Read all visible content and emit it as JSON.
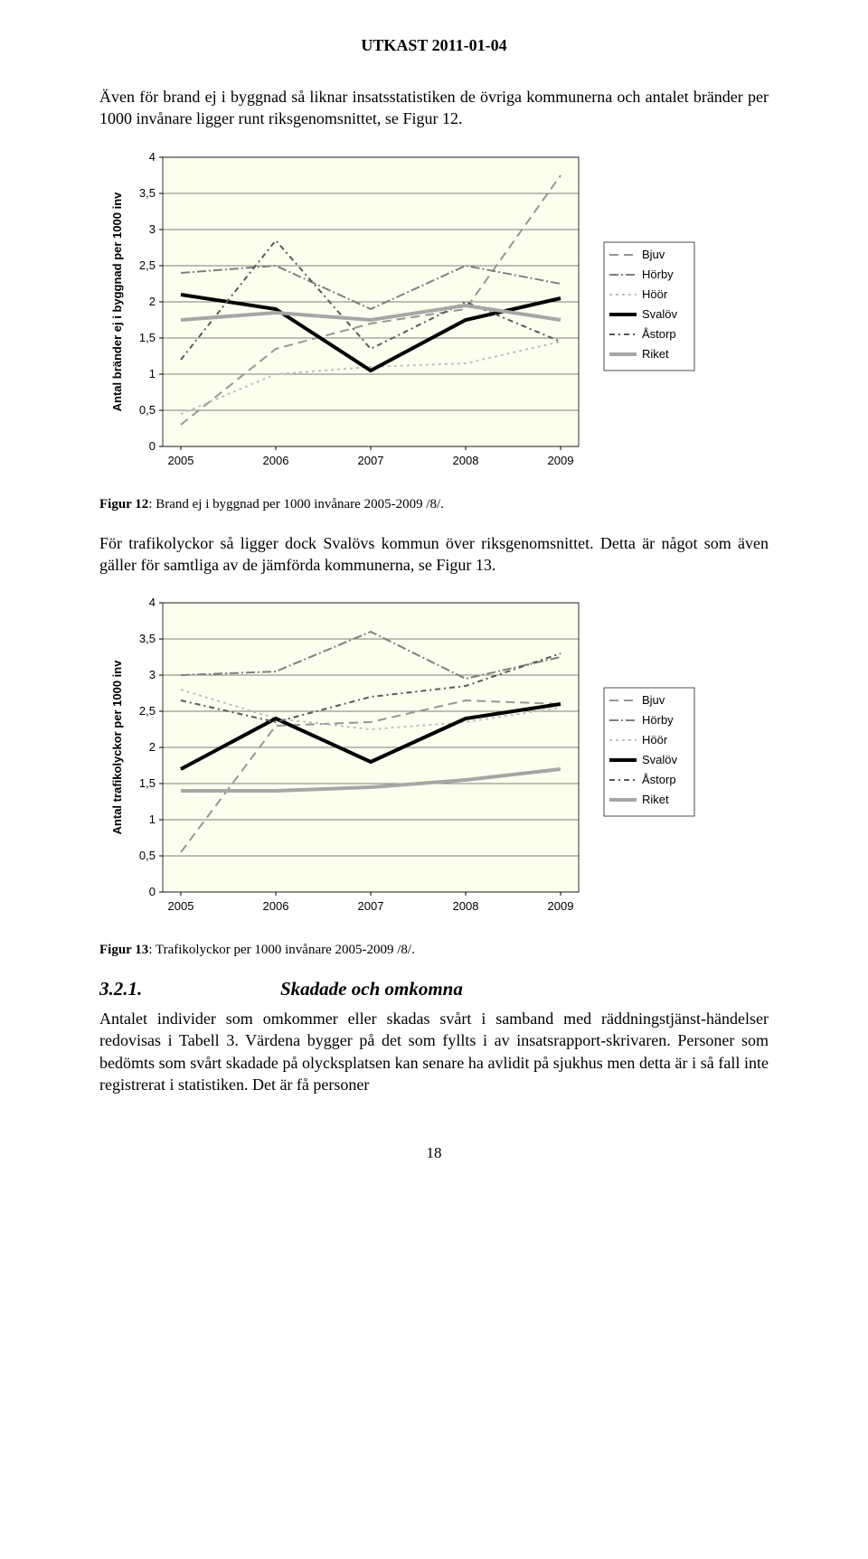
{
  "header": "UTKAST 2011-01-04",
  "para1_a": "Även för brand ej i byggnad så liknar insatsstatistiken de övriga kommunerna och antalet bränder per 1000 invånare ligger runt riksgenomsnittet, se ",
  "para1_ref": "Figur 12",
  "para1_b": ".",
  "chart1": {
    "ylabel": "Antal bränder ej i byggnad per 1000 inv",
    "ylim": [
      0,
      4
    ],
    "ytick_step": 0.5,
    "ytick_labels": [
      "0",
      "0,5",
      "1",
      "1,5",
      "2",
      "2,5",
      "3",
      "3,5",
      "4"
    ],
    "x_categories": [
      "2005",
      "2006",
      "2007",
      "2008",
      "2009"
    ],
    "legend": [
      "Bjuv",
      "Hörby",
      "Höör",
      "Svalöv",
      "Åstorp",
      "Riket"
    ],
    "series": {
      "Bjuv": {
        "color": "#969696",
        "width": 2,
        "dash": "10 6",
        "values": [
          0.3,
          1.35,
          1.7,
          1.9,
          3.75
        ]
      },
      "Hörby": {
        "color": "#7f7f7f",
        "width": 2,
        "dash": "10 3 2 3",
        "values": [
          2.4,
          2.5,
          1.9,
          2.5,
          2.25
        ]
      },
      "Höör": {
        "color": "#bfbfbf",
        "width": 2,
        "dash": "3 4",
        "values": [
          0.45,
          1.0,
          1.1,
          1.15,
          1.45
        ]
      },
      "Svalöv": {
        "color": "#000000",
        "width": 4,
        "dash": "",
        "values": [
          2.1,
          1.9,
          1.05,
          1.75,
          2.05
        ]
      },
      "Åstorp": {
        "color": "#595959",
        "width": 2,
        "dash": "6 4 2 4",
        "values": [
          1.2,
          2.85,
          1.35,
          2.0,
          1.45
        ]
      },
      "Riket": {
        "color": "#a6a6a6",
        "width": 4,
        "dash": "",
        "values": [
          1.75,
          1.85,
          1.75,
          1.95,
          1.75
        ]
      }
    },
    "plot_bg": "#fefeee",
    "grid_color": "#000000",
    "axis_fontsize": 13,
    "ylabel_fontsize": 13
  },
  "caption1_b": "Figur 12",
  "caption1_t": ": Brand ej i byggnad per 1000 invånare 2005-2009 /8/.",
  "para2_a": "För trafikolyckor så ligger dock Svalövs kommun över riksgenomsnittet. Detta är något som även gäller för samtliga av de jämförda kommunerna, se ",
  "para2_ref": "Figur 13",
  "para2_b": ".",
  "chart2": {
    "ylabel": "Antal trafikolyckor per 1000 inv",
    "ylim": [
      0,
      4
    ],
    "ytick_step": 0.5,
    "ytick_labels": [
      "0",
      "0,5",
      "1",
      "1,5",
      "2",
      "2,5",
      "3",
      "3,5",
      "4"
    ],
    "x_categories": [
      "2005",
      "2006",
      "2007",
      "2008",
      "2009"
    ],
    "legend": [
      "Bjuv",
      "Hörby",
      "Höör",
      "Svalöv",
      "Åstorp",
      "Riket"
    ],
    "series": {
      "Bjuv": {
        "color": "#969696",
        "width": 2,
        "dash": "10 6",
        "values": [
          0.55,
          2.3,
          2.35,
          2.65,
          2.6
        ]
      },
      "Hörby": {
        "color": "#7f7f7f",
        "width": 2,
        "dash": "10 3 2 3",
        "values": [
          3.0,
          3.05,
          3.6,
          2.95,
          3.25
        ]
      },
      "Höör": {
        "color": "#bfbfbf",
        "width": 2,
        "dash": "3 4",
        "values": [
          2.8,
          2.4,
          2.25,
          2.35,
          2.55
        ]
      },
      "Svalöv": {
        "color": "#000000",
        "width": 4,
        "dash": "",
        "values": [
          1.7,
          2.4,
          1.8,
          2.4,
          2.6
        ]
      },
      "Åstorp": {
        "color": "#595959",
        "width": 2,
        "dash": "6 4 2 4",
        "values": [
          2.65,
          2.35,
          2.7,
          2.85,
          3.3
        ]
      },
      "Riket": {
        "color": "#a6a6a6",
        "width": 4,
        "dash": "",
        "values": [
          1.4,
          1.4,
          1.45,
          1.55,
          1.7
        ]
      }
    },
    "plot_bg": "#fefeee",
    "grid_color": "#000000",
    "axis_fontsize": 13,
    "ylabel_fontsize": 13
  },
  "caption2_b": "Figur 13",
  "caption2_t": ": Trafikolyckor per 1000 invånare 2005-2009 /8/.",
  "section_num": "3.2.1.",
  "section_title": "Skadade och omkomna",
  "para3_a": "Antalet individer som omkommer eller skadas svårt i samband med räddningstjänst-händelser redovisas i ",
  "para3_ref": "Tabell 3",
  "para3_b": ". Värdena bygger på det som fyllts i av insatsrapport-skrivaren. Personer som bedömts som svårt skadade på olycksplatsen kan senare ha avlidit på sjukhus men detta är i så fall inte registrerat i statistiken. Det är få personer",
  "page_number": "18"
}
